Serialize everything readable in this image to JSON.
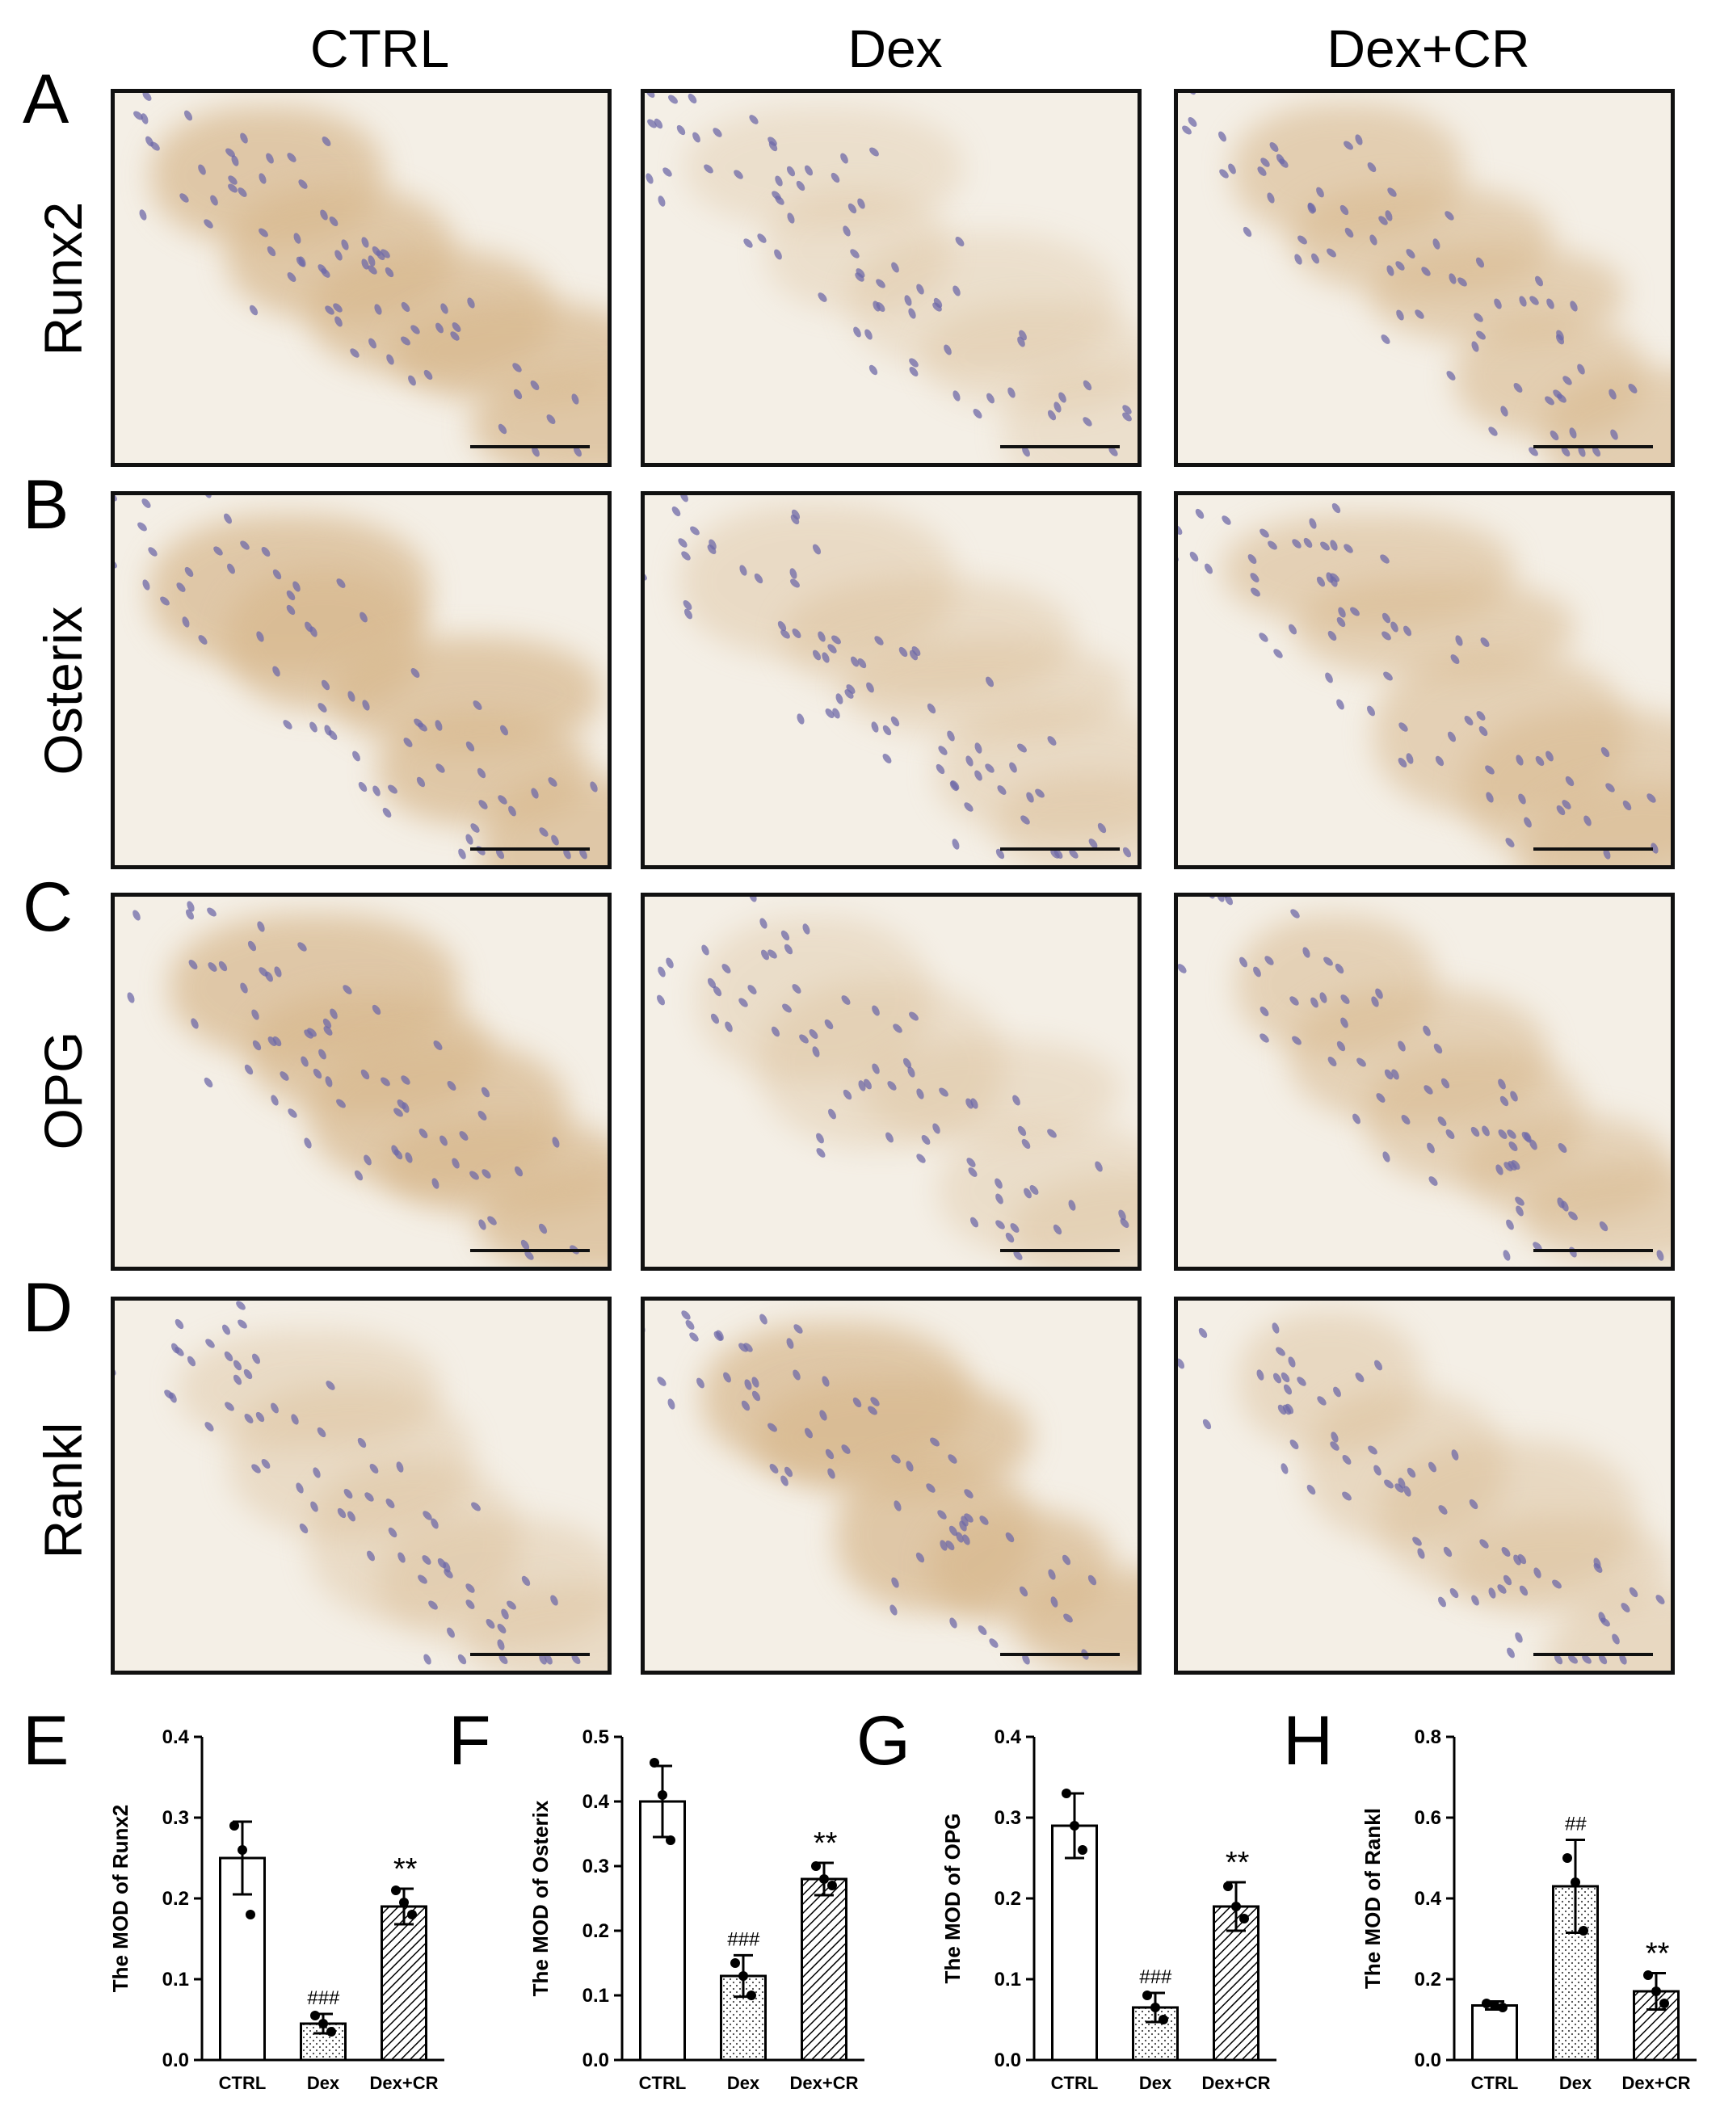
{
  "columns": [
    "CTRL",
    "Dex",
    "Dex+CR"
  ],
  "rows": [
    {
      "letter": "A",
      "marker": "Runx2"
    },
    {
      "letter": "B",
      "marker": "Osterix"
    },
    {
      "letter": "C",
      "marker": "OPG"
    },
    {
      "letter": "D",
      "marker": "Rankl"
    }
  ],
  "chart_letters": [
    "E",
    "F",
    "G",
    "H"
  ],
  "colors": {
    "stain": "#d8b98f",
    "nucleus": "#6f6aa8",
    "bar_stroke": "#000000"
  },
  "chart_data": [
    {
      "type": "bar",
      "categories": [
        "CTRL",
        "Dex",
        "Dex+CR"
      ],
      "values": [
        0.25,
        0.045,
        0.19
      ],
      "errors": [
        0.045,
        0.012,
        0.022
      ],
      "points": [
        [
          0.29,
          0.26,
          0.18
        ],
        [
          0.055,
          0.045,
          0.035
        ],
        [
          0.21,
          0.195,
          0.18
        ]
      ],
      "annotations": [
        "",
        "###",
        "**"
      ],
      "ylabel": "The MOD of Runx2",
      "ylim": [
        0,
        0.4
      ],
      "yticks": [
        "0.0",
        "0.1",
        "0.2",
        "0.3",
        "0.4"
      ]
    },
    {
      "type": "bar",
      "categories": [
        "CTRL",
        "Dex",
        "Dex+CR"
      ],
      "values": [
        0.4,
        0.13,
        0.28
      ],
      "errors": [
        0.055,
        0.032,
        0.025
      ],
      "points": [
        [
          0.46,
          0.41,
          0.34
        ],
        [
          0.15,
          0.13,
          0.1
        ],
        [
          0.3,
          0.28,
          0.27
        ]
      ],
      "annotations": [
        "",
        "###",
        "**"
      ],
      "ylabel": "The MOD of Osterix",
      "ylim": [
        0,
        0.5
      ],
      "yticks": [
        "0.0",
        "0.1",
        "0.2",
        "0.3",
        "0.4",
        "0.5"
      ]
    },
    {
      "type": "bar",
      "categories": [
        "CTRL",
        "Dex",
        "Dex+CR"
      ],
      "values": [
        0.29,
        0.065,
        0.19
      ],
      "errors": [
        0.04,
        0.018,
        0.03
      ],
      "points": [
        [
          0.33,
          0.29,
          0.26
        ],
        [
          0.08,
          0.065,
          0.05
        ],
        [
          0.215,
          0.19,
          0.175
        ]
      ],
      "annotations": [
        "",
        "###",
        "**"
      ],
      "ylabel": "The MOD of OPG",
      "ylim": [
        0,
        0.4
      ],
      "yticks": [
        "0.0",
        "0.1",
        "0.2",
        "0.3",
        "0.4"
      ]
    },
    {
      "type": "bar",
      "categories": [
        "CTRL",
        "Dex",
        "Dex+CR"
      ],
      "values": [
        0.135,
        0.43,
        0.17
      ],
      "errors": [
        0.01,
        0.115,
        0.045
      ],
      "points": [
        [
          0.14,
          0.135,
          0.13
        ],
        [
          0.5,
          0.44,
          0.32
        ],
        [
          0.21,
          0.17,
          0.14
        ]
      ],
      "annotations": [
        "",
        "##",
        "**"
      ],
      "ylabel": "The MOD of Rankl",
      "ylim": [
        0,
        0.8
      ],
      "yticks": [
        "0.0",
        "0.2",
        "0.4",
        "0.6",
        "0.8"
      ]
    }
  ]
}
